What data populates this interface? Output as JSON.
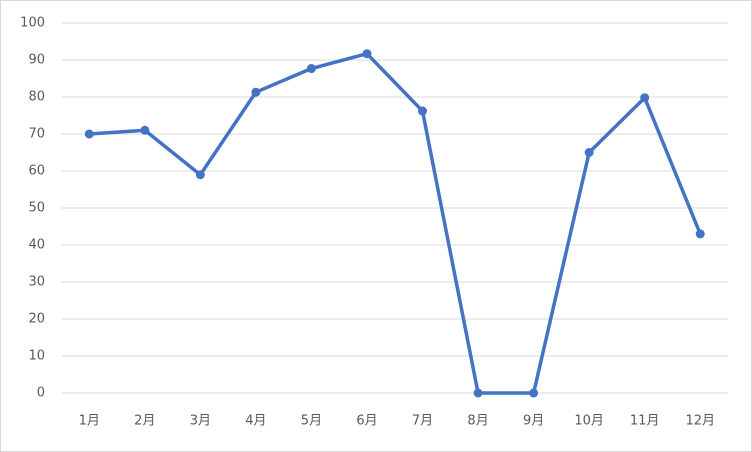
{
  "chart_data": {
    "type": "line",
    "categories": [
      "1月",
      "2月",
      "3月",
      "4月",
      "5月",
      "6月",
      "7月",
      "8月",
      "9月",
      "10月",
      "11月",
      "12月"
    ],
    "series": [
      {
        "color": "#4472c4",
        "values": [
          70,
          71,
          59,
          81.3,
          87.7,
          91.7,
          76.2,
          0,
          0,
          65,
          79.8,
          43
        ]
      }
    ],
    "ylim": [
      0,
      100
    ],
    "yticks": [
      0,
      10,
      20,
      30,
      40,
      50,
      60,
      70,
      80,
      90,
      100
    ],
    "grid": true
  }
}
